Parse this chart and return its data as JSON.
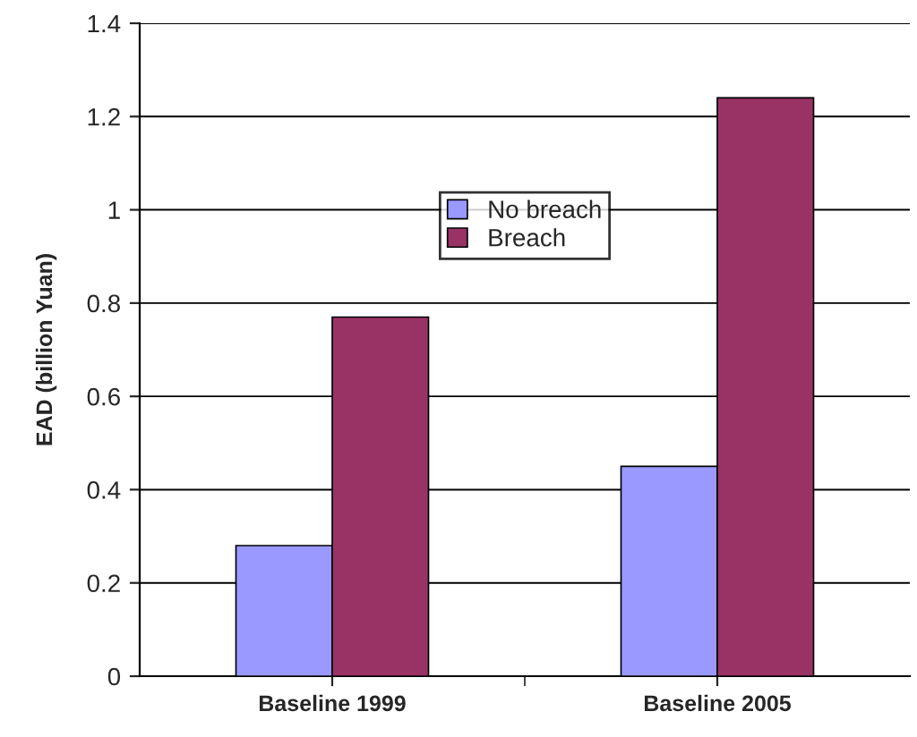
{
  "chart_data": {
    "type": "bar",
    "ylabel": "EAD (billion Yuan)",
    "categories": [
      "Baseline 1999",
      "Baseline 2005"
    ],
    "series": [
      {
        "name": "No breach",
        "color": "#9999ff",
        "values": [
          0.28,
          0.45
        ]
      },
      {
        "name": "Breach",
        "color": "#993366",
        "values": [
          0.77,
          1.24
        ]
      }
    ],
    "ylim": [
      0,
      1.4
    ],
    "yticks": [
      0,
      0.2,
      0.4,
      0.6,
      0.8,
      1,
      1.2,
      1.4
    ],
    "grid": "y",
    "legend": "top"
  }
}
